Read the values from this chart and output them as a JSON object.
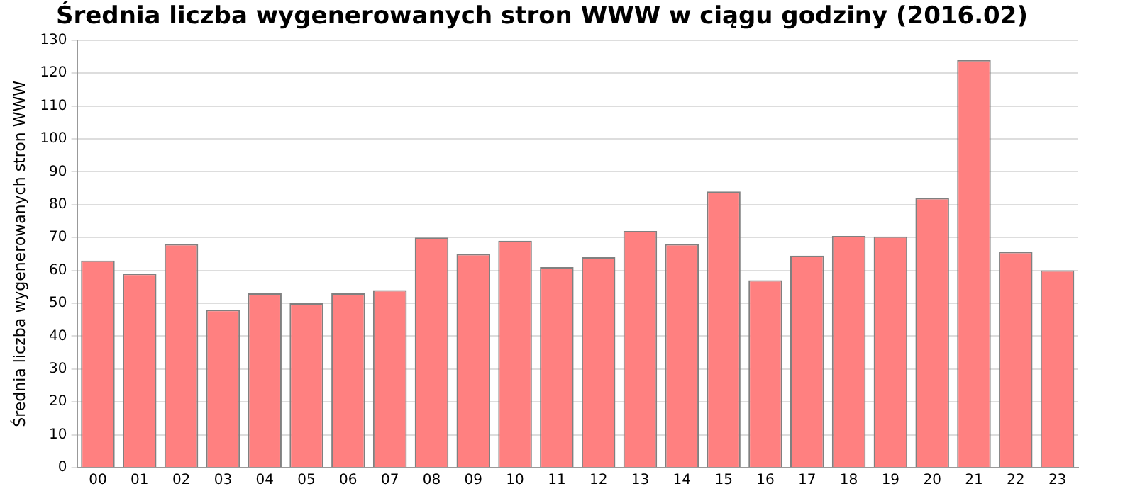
{
  "chart_data": {
    "type": "bar",
    "title": "Średnia liczba wygenerowanych stron WWW w ciągu godziny (2016.02)",
    "ylabel": "Średnia liczba wygenerowanych stron WWW",
    "categories": [
      "00",
      "01",
      "02",
      "03",
      "04",
      "05",
      "06",
      "07",
      "08",
      "09",
      "10",
      "11",
      "12",
      "13",
      "14",
      "15",
      "16",
      "17",
      "18",
      "19",
      "20",
      "21",
      "22",
      "23"
    ],
    "values": [
      63,
      59,
      68,
      48,
      53,
      50,
      53,
      54,
      70,
      65,
      69,
      61,
      64,
      72,
      68,
      84,
      57,
      64.5,
      70.5,
      70.3,
      82,
      124,
      65.6,
      60
    ],
    "color": "#ff8080",
    "ylim": [
      0,
      130
    ],
    "yticks": [
      0,
      10,
      20,
      30,
      40,
      50,
      60,
      70,
      80,
      90,
      100,
      110,
      120,
      130
    ],
    "grid": "y"
  }
}
